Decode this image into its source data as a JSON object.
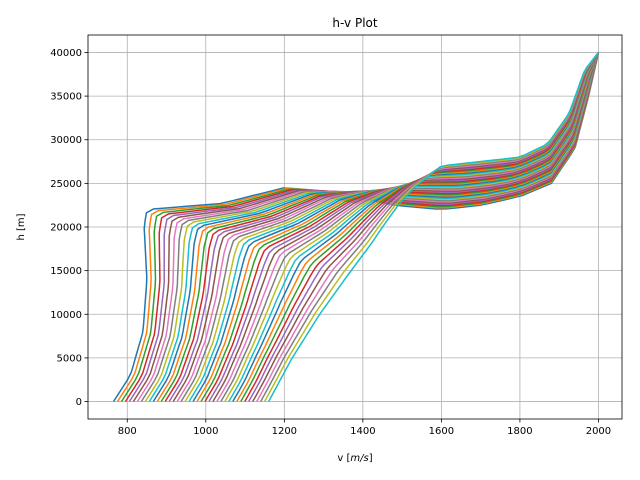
{
  "chart_data": {
    "type": "line",
    "title": "h-v Plot",
    "xlabel": {
      "prefix": "v [",
      "unit": "m/s",
      "suffix": "]"
    },
    "ylabel": "h [m]",
    "xlim": [
      700,
      2060
    ],
    "ylim": [
      -2000,
      42000
    ],
    "xticks": [
      800,
      1000,
      1200,
      1400,
      1600,
      1800,
      2000
    ],
    "yticks": [
      0,
      5000,
      10000,
      15000,
      20000,
      25000,
      30000,
      35000,
      40000
    ],
    "grid": true,
    "legend": "none",
    "series_count": 40,
    "series_colors": [
      "#1f77b4",
      "#ff7f0e",
      "#2ca02c",
      "#d62728",
      "#9467bd",
      "#8c564b",
      "#e377c2",
      "#7f7f7f",
      "#bcbd22",
      "#17becf"
    ],
    "series": [
      {
        "x": [
          765,
          808,
          840,
          850,
          843,
          850,
          1040,
          1200,
          1330,
          1480,
          1600,
          1700,
          1800,
          1880,
          1940,
          1975,
          2000
        ],
        "y": [
          0,
          3000,
          8000,
          14000,
          20000,
          22000,
          22700,
          24500,
          24000,
          22500,
          22000,
          22500,
          23500,
          25000,
          29000,
          35000,
          40000
        ]
      },
      {
        "x": [
          1160,
          1220,
          1290,
          1370,
          1420,
          1450,
          1490,
          1530,
          1600,
          1700,
          1800,
          1870,
          1925,
          1965,
          2000
        ],
        "y": [
          0,
          5000,
          10000,
          15000,
          18000,
          20000,
          22500,
          24500,
          27000,
          27500,
          28000,
          29500,
          33000,
          38000,
          40000
        ]
      }
    ]
  }
}
